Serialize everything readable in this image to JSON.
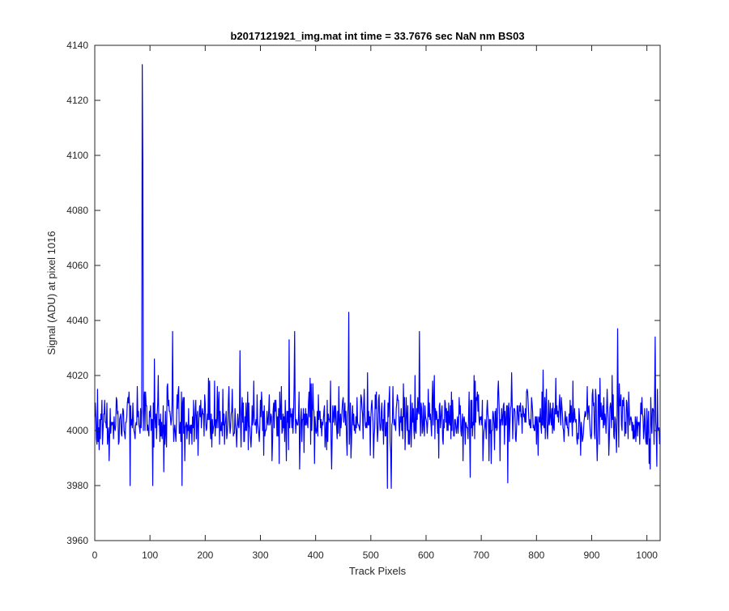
{
  "chart_data": {
    "type": "line",
    "title": "b2017121921_img.mat int time = 33.7676 sec  NaN nm BS03",
    "xlabel": "Track Pixels",
    "ylabel": "Signal (ADU) at pixel 1016",
    "xlim": [
      0,
      1024
    ],
    "ylim": [
      3960,
      4140
    ],
    "xticks": [
      0,
      100,
      200,
      300,
      400,
      500,
      600,
      700,
      800,
      900,
      1000
    ],
    "yticks": [
      3960,
      3980,
      4000,
      4020,
      4040,
      4060,
      4080,
      4100,
      4120,
      4140
    ],
    "grid": false,
    "line_color": "#0000ff",
    "series": [
      {
        "n_points": 1024,
        "baseline": 4004,
        "noise_sd": 6,
        "features": [
          {
            "x": 86,
            "y": 4133
          },
          {
            "x": 87,
            "y": 4098
          },
          {
            "x": 88,
            "y": 4000
          },
          {
            "x": 64,
            "y": 3980
          },
          {
            "x": 105,
            "y": 3980
          },
          {
            "x": 108,
            "y": 4026
          },
          {
            "x": 141,
            "y": 4036
          },
          {
            "x": 158,
            "y": 3980
          },
          {
            "x": 263,
            "y": 4029
          },
          {
            "x": 352,
            "y": 4033
          },
          {
            "x": 362,
            "y": 4036
          },
          {
            "x": 460,
            "y": 4043
          },
          {
            "x": 465,
            "y": 3996
          },
          {
            "x": 530,
            "y": 3979
          },
          {
            "x": 537,
            "y": 3979
          },
          {
            "x": 588,
            "y": 4036
          },
          {
            "x": 680,
            "y": 3983
          },
          {
            "x": 748,
            "y": 3981
          },
          {
            "x": 947,
            "y": 4037
          },
          {
            "x": 1015,
            "y": 4034
          },
          {
            "x": 1018,
            "y": 3987
          }
        ]
      }
    ]
  }
}
